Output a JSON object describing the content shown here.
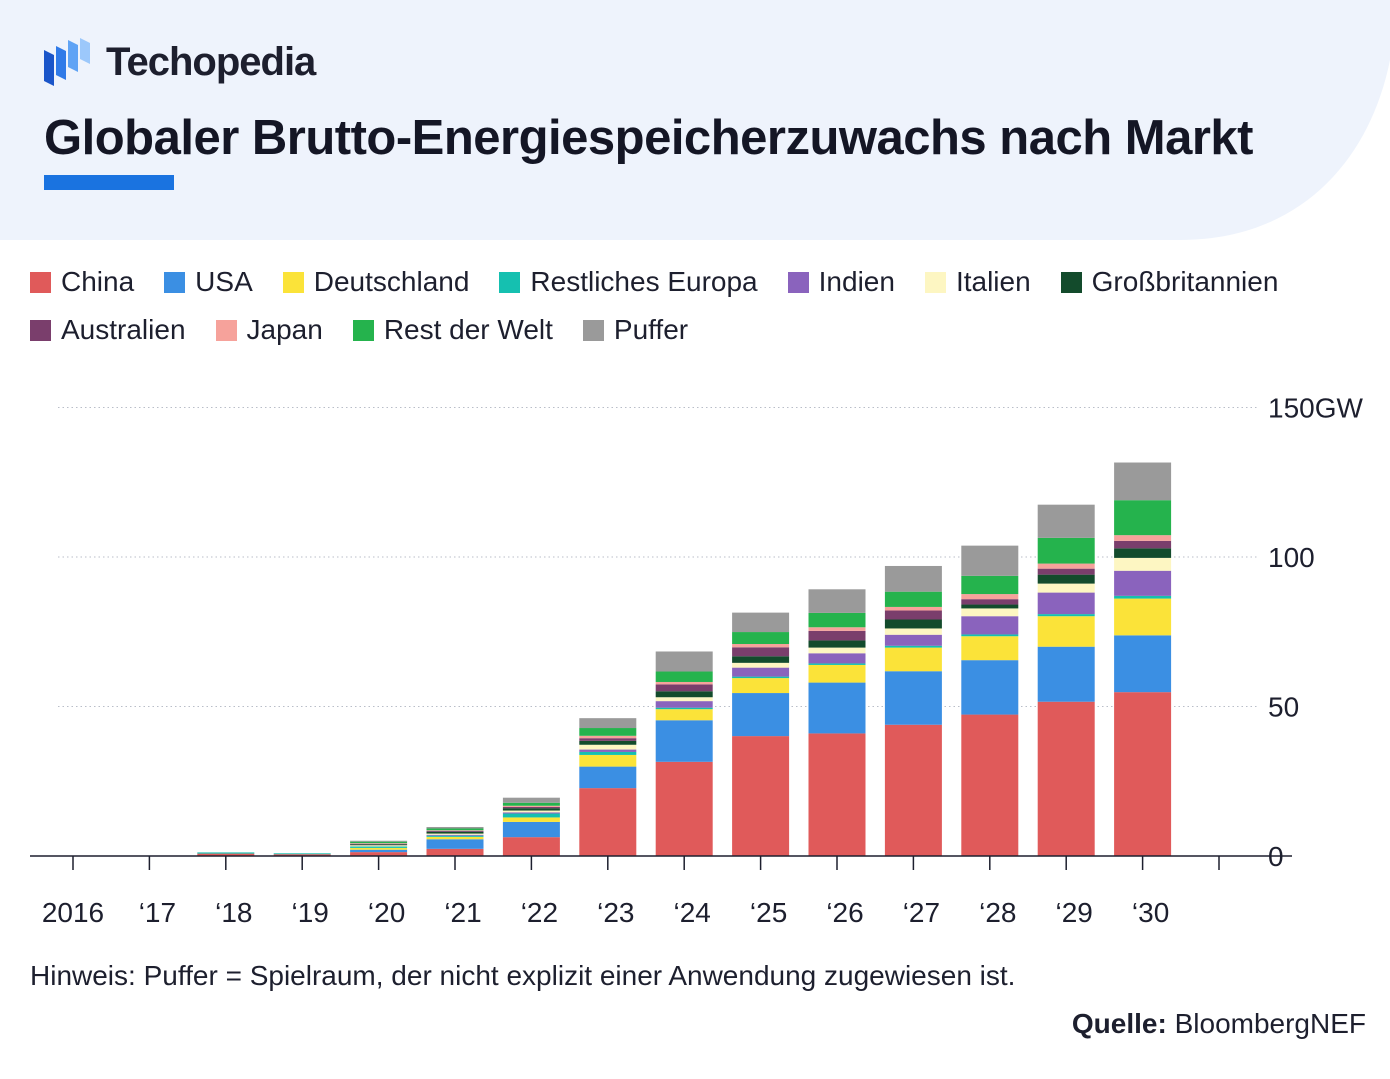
{
  "brand": {
    "name": "Techopedia"
  },
  "header": {
    "title": "Globaler Brutto-Energiespeicherzuwachs nach Markt"
  },
  "colors": {
    "accent": "#1a73e0",
    "header_bg": "#eef3fc",
    "China": "#e05a5a",
    "USA": "#3b8fe3",
    "Deutschland": "#fbe339",
    "Restliches Europa": "#15c0b0",
    "Indien": "#8a63bd",
    "Italien": "#fdf6c2",
    "Großbritannien": "#134b2c",
    "Australien": "#7a3e6c",
    "Japan": "#f6a29b",
    "Rest der Welt": "#25b34d",
    "Puffer": "#9a9a9a"
  },
  "chart_data": {
    "type": "bar",
    "stacked": true,
    "title": "Globaler Brutto-Energiespeicherzuwachs nach Markt",
    "xlabel": "",
    "ylabel": "",
    "ylim": [
      0,
      150
    ],
    "y_ticks": [
      "0",
      "50",
      "100",
      "150GW"
    ],
    "y_tick_values": [
      0,
      50,
      100,
      150
    ],
    "y_axis_side": "right",
    "grid": true,
    "legend_position": "top-left",
    "categories": [
      "2016",
      "‘17",
      "‘18",
      "‘19",
      "‘20",
      "‘21",
      "‘22",
      "‘23",
      "‘24",
      "‘25",
      "‘26",
      "‘27",
      "‘28",
      "‘29",
      "‘30"
    ],
    "series": [
      {
        "name": "China",
        "values": [
          0,
          0,
          0.8,
          0.6,
          1.3,
          2.4,
          6.3,
          22.7,
          31.5,
          40.1,
          41.0,
          43.9,
          47.3,
          51.6,
          54.8
        ]
      },
      {
        "name": "USA",
        "values": [
          0,
          0,
          0,
          0,
          0.8,
          3.2,
          5.1,
          7.2,
          13.9,
          14.4,
          17.0,
          17.9,
          18.2,
          18.4,
          19.0
        ]
      },
      {
        "name": "Deutschland",
        "values": [
          0,
          0,
          0,
          0,
          0.6,
          0.8,
          1.5,
          3.9,
          3.7,
          5.0,
          5.9,
          7.9,
          8.0,
          10.2,
          12.3
        ]
      },
      {
        "name": "Restliches Europa",
        "values": [
          0,
          0,
          0.4,
          0.3,
          0.5,
          0.4,
          1.3,
          1.0,
          0.5,
          0.5,
          0.5,
          0.6,
          0.6,
          0.7,
          0.9
        ]
      },
      {
        "name": "Indien",
        "values": [
          0,
          0,
          0,
          0,
          0,
          0.3,
          0.4,
          0.8,
          2.2,
          3.0,
          3.4,
          3.7,
          6.1,
          7.2,
          8.4
        ]
      },
      {
        "name": "Italien",
        "values": [
          0,
          0,
          0,
          0,
          0.4,
          0.4,
          0.6,
          1.6,
          1.3,
          1.6,
          1.9,
          2.1,
          2.6,
          3.0,
          4.3
        ]
      },
      {
        "name": "Großbritannien",
        "values": [
          0,
          0,
          0,
          0,
          0.3,
          0.6,
          0.8,
          1.3,
          2.0,
          2.2,
          2.4,
          3.0,
          1.3,
          3.0,
          3.2
        ]
      },
      {
        "name": "Australien",
        "values": [
          0,
          0,
          0,
          0,
          0.2,
          0.3,
          0.4,
          0.9,
          2.3,
          3.0,
          3.2,
          3.0,
          1.8,
          2.0,
          2.5
        ]
      },
      {
        "name": "Japan",
        "values": [
          0,
          0,
          0,
          0,
          0.2,
          0.2,
          0.4,
          0.8,
          0.8,
          1.1,
          1.2,
          1.2,
          1.7,
          1.7,
          1.9
        ]
      },
      {
        "name": "Rest der Welt",
        "values": [
          0,
          0,
          0,
          0,
          0.5,
          0.6,
          1.0,
          2.6,
          3.5,
          4.0,
          4.8,
          5.1,
          6.1,
          8.6,
          11.7
        ]
      },
      {
        "name": "Puffer",
        "values": [
          0,
          0,
          0,
          0,
          0.3,
          0.5,
          1.7,
          3.3,
          6.7,
          6.5,
          7.9,
          8.6,
          10.1,
          11.1,
          12.6
        ]
      }
    ]
  },
  "footer": {
    "note": "Hinweis: Puffer = Spielraum, der nicht explizit einer Anwendung zugewiesen ist.",
    "source_label": "Quelle:",
    "source_value": "BloombergNEF"
  }
}
